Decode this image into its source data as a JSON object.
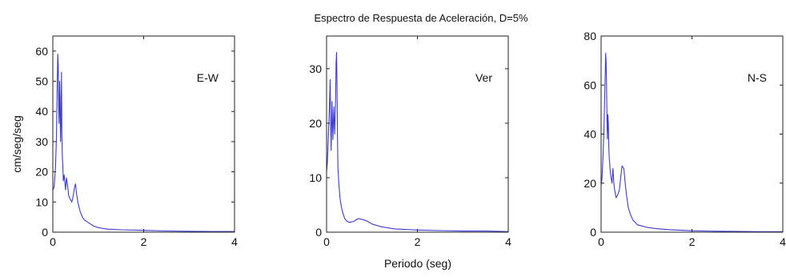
{
  "chart_data": {
    "type": "line",
    "title": "Espectro de Respuesta de Aceleración, D=5%",
    "xlabel": "Periodo (seg)",
    "ylabel": "cm/seg/seg",
    "line_color": "#3b3bd6",
    "grid": false,
    "panels": [
      {
        "name": "E-W",
        "xlim": [
          0,
          4
        ],
        "ylim": [
          0,
          65
        ],
        "xticks": [
          "0",
          "2",
          "4"
        ],
        "yticks": [
          "0",
          "10",
          "20",
          "30",
          "40",
          "50",
          "60"
        ],
        "x": [
          0,
          0.03,
          0.06,
          0.08,
          0.1,
          0.11,
          0.12,
          0.13,
          0.14,
          0.15,
          0.16,
          0.17,
          0.18,
          0.19,
          0.2,
          0.21,
          0.22,
          0.23,
          0.25,
          0.28,
          0.3,
          0.32,
          0.35,
          0.38,
          0.42,
          0.45,
          0.48,
          0.5,
          0.52,
          0.55,
          0.6,
          0.65,
          0.7,
          0.8,
          0.9,
          1.0,
          1.2,
          1.5,
          2.0,
          2.5,
          3.0,
          3.5,
          4.0
        ],
        "y": [
          14,
          15,
          22,
          31,
          52,
          59,
          55,
          40,
          36,
          50,
          44,
          30,
          36,
          53,
          33,
          25,
          22,
          17,
          19,
          14,
          18,
          16,
          12,
          11,
          10,
          12,
          15,
          16,
          13,
          10,
          7,
          5,
          4,
          3,
          2,
          1.5,
          1.0,
          0.8,
          0.6,
          0.4,
          0.3,
          0.2,
          0.2
        ]
      },
      {
        "name": "Ver",
        "xlim": [
          0,
          4
        ],
        "ylim": [
          0,
          36
        ],
        "xticks": [
          "0",
          "2",
          "4"
        ],
        "yticks": [
          "0",
          "10",
          "20",
          "30"
        ],
        "x": [
          0,
          0.02,
          0.04,
          0.06,
          0.08,
          0.09,
          0.1,
          0.12,
          0.14,
          0.16,
          0.18,
          0.2,
          0.21,
          0.22,
          0.23,
          0.24,
          0.25,
          0.27,
          0.3,
          0.33,
          0.36,
          0.4,
          0.45,
          0.5,
          0.6,
          0.7,
          0.8,
          0.9,
          1.0,
          1.2,
          1.5,
          2.0,
          2.5,
          3.0,
          3.5,
          4.0
        ],
        "y": [
          11,
          13,
          18,
          22,
          28,
          20,
          15,
          24,
          17,
          23,
          18,
          25,
          31,
          33,
          27,
          18,
          12,
          9,
          6,
          4.5,
          3.5,
          2.5,
          2.0,
          1.8,
          2.0,
          2.5,
          2.3,
          2.0,
          1.5,
          1.0,
          0.6,
          0.4,
          0.3,
          0.2,
          0.2,
          0.1
        ]
      },
      {
        "name": "N-S",
        "xlim": [
          0,
          4
        ],
        "ylim": [
          0,
          80
        ],
        "xticks": [
          "0",
          "2",
          "4"
        ],
        "yticks": [
          "0",
          "20",
          "40",
          "60",
          "80"
        ],
        "x": [
          0,
          0.02,
          0.04,
          0.06,
          0.08,
          0.1,
          0.11,
          0.12,
          0.13,
          0.14,
          0.15,
          0.16,
          0.17,
          0.18,
          0.19,
          0.2,
          0.22,
          0.24,
          0.26,
          0.28,
          0.3,
          0.33,
          0.36,
          0.4,
          0.43,
          0.46,
          0.5,
          0.53,
          0.56,
          0.6,
          0.65,
          0.7,
          0.8,
          0.9,
          1.0,
          1.2,
          1.5,
          2.0,
          2.5,
          3.0,
          3.5,
          4.0
        ],
        "y": [
          19,
          22,
          30,
          40,
          55,
          73,
          70,
          60,
          45,
          38,
          48,
          44,
          35,
          30,
          28,
          25,
          22,
          20,
          26,
          20,
          17,
          14,
          15,
          17,
          22,
          27,
          26,
          20,
          15,
          10,
          7,
          5,
          3,
          2.5,
          2,
          1.5,
          1.0,
          0.6,
          0.4,
          0.3,
          0.2,
          0.2
        ]
      }
    ]
  }
}
